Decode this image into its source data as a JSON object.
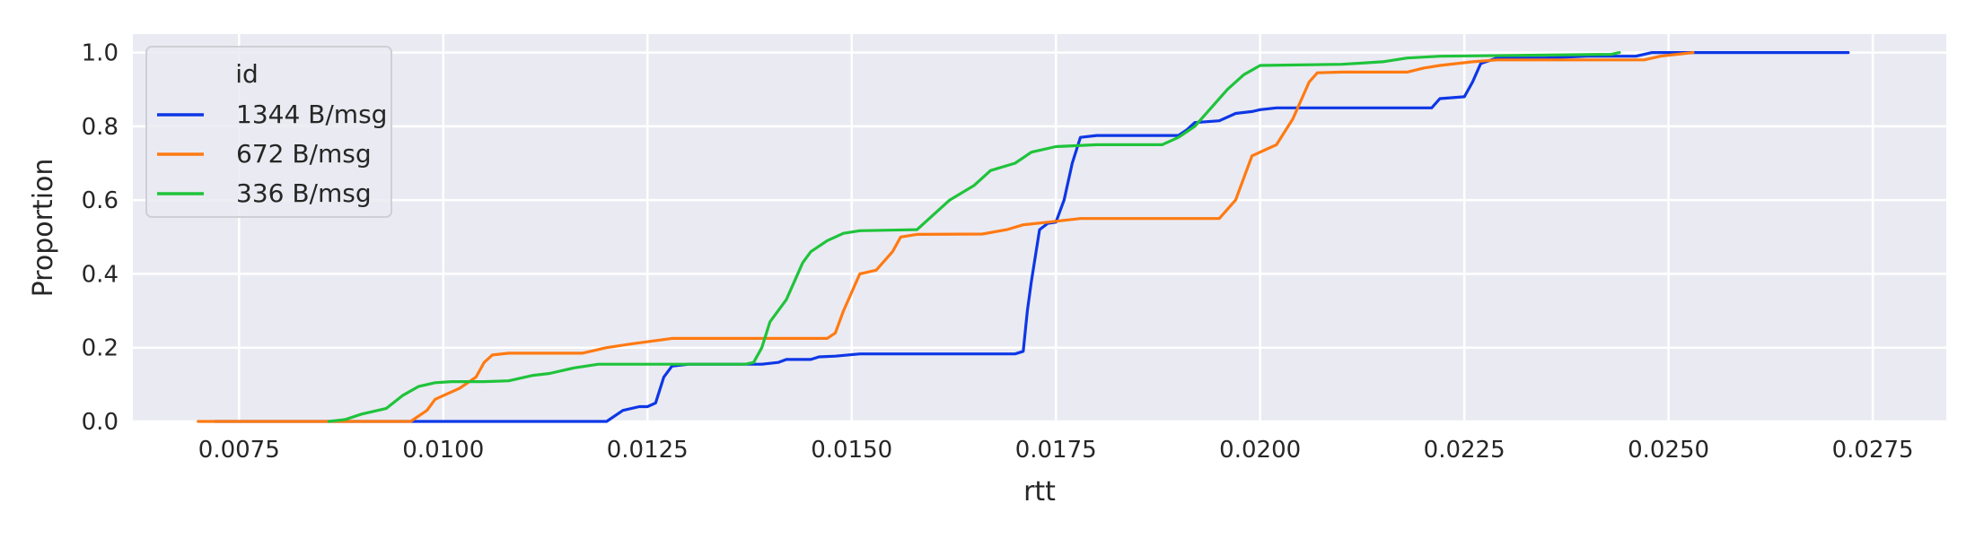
{
  "chart_data": {
    "type": "line",
    "xlabel": "rtt",
    "ylabel": "Proportion",
    "xlim": [
      0.0062,
      0.0284
    ],
    "ylim": [
      0.0,
      1.05
    ],
    "xticks": [
      0.0075,
      0.01,
      0.0125,
      0.015,
      0.0175,
      0.02,
      0.0225,
      0.025,
      0.0275
    ],
    "xtick_labels": [
      "0.0075",
      "0.0100",
      "0.0125",
      "0.0150",
      "0.0175",
      "0.0200",
      "0.0225",
      "0.0250",
      "0.0275"
    ],
    "yticks": [
      0.0,
      0.2,
      0.4,
      0.6,
      0.8,
      1.0
    ],
    "ytick_labels": [
      "0.0",
      "0.2",
      "0.4",
      "0.6",
      "0.8",
      "1.0"
    ],
    "grid": true,
    "legend": {
      "title": "id",
      "placement": "upper left"
    },
    "series": [
      {
        "name": "1344 B/msg",
        "color": "#0d37e6",
        "points": [
          [
            0.0072,
            0.0
          ],
          [
            0.012,
            0.0
          ],
          [
            0.0122,
            0.03
          ],
          [
            0.0124,
            0.04
          ],
          [
            0.0125,
            0.04
          ],
          [
            0.0126,
            0.05
          ],
          [
            0.0127,
            0.12
          ],
          [
            0.0128,
            0.15
          ],
          [
            0.013,
            0.155
          ],
          [
            0.0139,
            0.155
          ],
          [
            0.0141,
            0.16
          ],
          [
            0.0142,
            0.168
          ],
          [
            0.0145,
            0.168
          ],
          [
            0.0146,
            0.175
          ],
          [
            0.0148,
            0.177
          ],
          [
            0.0151,
            0.183
          ],
          [
            0.0155,
            0.183
          ],
          [
            0.017,
            0.183
          ],
          [
            0.0171,
            0.19
          ],
          [
            0.01715,
            0.3
          ],
          [
            0.0172,
            0.38
          ],
          [
            0.0173,
            0.52
          ],
          [
            0.0174,
            0.537
          ],
          [
            0.0175,
            0.54
          ],
          [
            0.0176,
            0.6
          ],
          [
            0.0177,
            0.7
          ],
          [
            0.0178,
            0.77
          ],
          [
            0.018,
            0.775
          ],
          [
            0.019,
            0.775
          ],
          [
            0.0191,
            0.79
          ],
          [
            0.0192,
            0.81
          ],
          [
            0.0195,
            0.815
          ],
          [
            0.0197,
            0.835
          ],
          [
            0.0199,
            0.84
          ],
          [
            0.02,
            0.845
          ],
          [
            0.0202,
            0.85
          ],
          [
            0.021,
            0.85
          ],
          [
            0.0221,
            0.85
          ],
          [
            0.0222,
            0.875
          ],
          [
            0.0225,
            0.88
          ],
          [
            0.0226,
            0.92
          ],
          [
            0.0227,
            0.97
          ],
          [
            0.0229,
            0.985
          ],
          [
            0.0235,
            0.985
          ],
          [
            0.024,
            0.99
          ],
          [
            0.0246,
            0.99
          ],
          [
            0.0248,
            1.0
          ],
          [
            0.0272,
            1.0
          ]
        ]
      },
      {
        "name": "672 B/msg",
        "color": "#ff7a12",
        "points": [
          [
            0.007,
            0.0
          ],
          [
            0.0096,
            0.0
          ],
          [
            0.0098,
            0.03
          ],
          [
            0.0099,
            0.06
          ],
          [
            0.01,
            0.07
          ],
          [
            0.0102,
            0.09
          ],
          [
            0.0104,
            0.12
          ],
          [
            0.0105,
            0.16
          ],
          [
            0.0106,
            0.18
          ],
          [
            0.0108,
            0.185
          ],
          [
            0.0117,
            0.185
          ],
          [
            0.0119,
            0.195
          ],
          [
            0.012,
            0.2
          ],
          [
            0.0123,
            0.21
          ],
          [
            0.0128,
            0.225
          ],
          [
            0.014,
            0.225
          ],
          [
            0.0147,
            0.225
          ],
          [
            0.0148,
            0.24
          ],
          [
            0.0149,
            0.3
          ],
          [
            0.015,
            0.35
          ],
          [
            0.0151,
            0.4
          ],
          [
            0.0153,
            0.41
          ],
          [
            0.0155,
            0.46
          ],
          [
            0.0156,
            0.5
          ],
          [
            0.0158,
            0.507
          ],
          [
            0.0166,
            0.508
          ],
          [
            0.0169,
            0.52
          ],
          [
            0.0171,
            0.533
          ],
          [
            0.0174,
            0.54
          ],
          [
            0.0178,
            0.55
          ],
          [
            0.0185,
            0.55
          ],
          [
            0.0195,
            0.55
          ],
          [
            0.0197,
            0.6
          ],
          [
            0.0199,
            0.72
          ],
          [
            0.0201,
            0.74
          ],
          [
            0.0202,
            0.75
          ],
          [
            0.0204,
            0.82
          ],
          [
            0.0206,
            0.92
          ],
          [
            0.0207,
            0.945
          ],
          [
            0.021,
            0.947
          ],
          [
            0.0218,
            0.947
          ],
          [
            0.022,
            0.958
          ],
          [
            0.0222,
            0.965
          ],
          [
            0.0226,
            0.975
          ],
          [
            0.0229,
            0.98
          ],
          [
            0.0247,
            0.98
          ],
          [
            0.0249,
            0.99
          ],
          [
            0.0253,
            1.0
          ]
        ]
      },
      {
        "name": "336 B/msg",
        "color": "#1fc33b",
        "points": [
          [
            0.0086,
            0.0
          ],
          [
            0.0088,
            0.005
          ],
          [
            0.009,
            0.02
          ],
          [
            0.0093,
            0.035
          ],
          [
            0.0095,
            0.07
          ],
          [
            0.0097,
            0.095
          ],
          [
            0.0099,
            0.105
          ],
          [
            0.0101,
            0.108
          ],
          [
            0.0105,
            0.108
          ],
          [
            0.0108,
            0.11
          ],
          [
            0.0111,
            0.125
          ],
          [
            0.0113,
            0.13
          ],
          [
            0.0116,
            0.145
          ],
          [
            0.0119,
            0.155
          ],
          [
            0.0125,
            0.155
          ],
          [
            0.0137,
            0.155
          ],
          [
            0.0138,
            0.16
          ],
          [
            0.0139,
            0.2
          ],
          [
            0.014,
            0.27
          ],
          [
            0.0142,
            0.33
          ],
          [
            0.0143,
            0.38
          ],
          [
            0.0144,
            0.43
          ],
          [
            0.0145,
            0.46
          ],
          [
            0.0147,
            0.49
          ],
          [
            0.0149,
            0.51
          ],
          [
            0.0151,
            0.517
          ],
          [
            0.0158,
            0.52
          ],
          [
            0.016,
            0.56
          ],
          [
            0.0162,
            0.6
          ],
          [
            0.0165,
            0.64
          ],
          [
            0.0167,
            0.68
          ],
          [
            0.017,
            0.7
          ],
          [
            0.0172,
            0.73
          ],
          [
            0.0175,
            0.745
          ],
          [
            0.018,
            0.75
          ],
          [
            0.0188,
            0.75
          ],
          [
            0.019,
            0.77
          ],
          [
            0.0192,
            0.8
          ],
          [
            0.0194,
            0.85
          ],
          [
            0.0196,
            0.9
          ],
          [
            0.0198,
            0.94
          ],
          [
            0.02,
            0.965
          ],
          [
            0.021,
            0.968
          ],
          [
            0.0215,
            0.975
          ],
          [
            0.0218,
            0.985
          ],
          [
            0.0222,
            0.99
          ],
          [
            0.0243,
            0.995
          ],
          [
            0.0244,
            1.0
          ]
        ]
      }
    ]
  }
}
